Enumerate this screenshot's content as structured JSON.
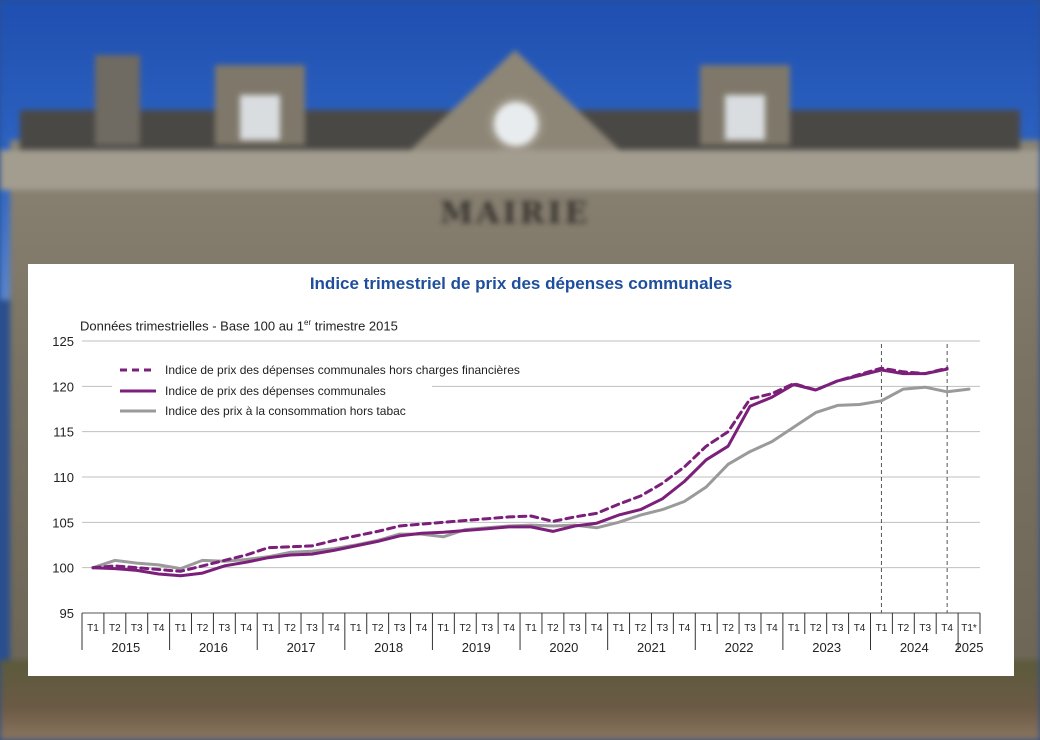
{
  "chart_data": {
    "type": "line",
    "title": "Indice trimestriel de prix des dépenses communales",
    "subtitle_prefix": "Données trimestrielles - Base 100 au 1",
    "subtitle_sup": "er",
    "subtitle_suffix": " trimestre 2015",
    "ylim": [
      95,
      125
    ],
    "yticks": [
      95,
      100,
      105,
      110,
      115,
      120,
      125
    ],
    "quarter_labels": [
      "T1",
      "T2",
      "T3",
      "T4",
      "T1",
      "T2",
      "T3",
      "T4",
      "T1",
      "T2",
      "T3",
      "T4",
      "T1",
      "T2",
      "T3",
      "T4",
      "T1",
      "T2",
      "T3",
      "T4",
      "T1",
      "T2",
      "T3",
      "T4",
      "T1",
      "T2",
      "T3",
      "T4",
      "T1",
      "T2",
      "T3",
      "T4",
      "T1",
      "T2",
      "T3",
      "T4",
      "T1",
      "T2",
      "T3",
      "T4",
      "T1*"
    ],
    "years": [
      "2015",
      "2016",
      "2017",
      "2018",
      "2019",
      "2020",
      "2021",
      "2022",
      "2023",
      "2024",
      "2025"
    ],
    "grid": true,
    "legend_position": "top-left",
    "series": [
      {
        "name": "Indice de prix des dépenses communales hors charges financières",
        "style": "dashed",
        "color": "#7b1f7a",
        "values": [
          100.0,
          100.2,
          100.0,
          99.8,
          99.6,
          100.2,
          100.8,
          101.4,
          102.2,
          102.3,
          102.4,
          103.0,
          103.5,
          104.0,
          104.6,
          104.8,
          105.0,
          105.2,
          105.4,
          105.6,
          105.7,
          105.1,
          105.6,
          106.0,
          107.0,
          107.9,
          109.3,
          111.1,
          113.4,
          115.0,
          118.6,
          119.2,
          120.3,
          119.6,
          120.6,
          121.3,
          122.0,
          121.6,
          121.4,
          122.0,
          null
        ]
      },
      {
        "name": "Indice de prix des dépenses communales",
        "style": "solid",
        "color": "#7b1f7a",
        "values": [
          100.0,
          99.9,
          99.7,
          99.3,
          99.1,
          99.4,
          100.2,
          100.6,
          101.1,
          101.4,
          101.5,
          101.9,
          102.4,
          102.9,
          103.5,
          103.8,
          103.9,
          104.1,
          104.3,
          104.5,
          104.5,
          104.0,
          104.6,
          104.9,
          105.8,
          106.4,
          107.6,
          109.5,
          111.9,
          113.4,
          117.8,
          118.8,
          120.2,
          119.6,
          120.6,
          121.2,
          121.8,
          121.4,
          121.4,
          121.9,
          null
        ]
      },
      {
        "name": "Indice des prix à la consommation hors tabac",
        "style": "solid",
        "color": "#9a9a9a",
        "values": [
          100.0,
          100.8,
          100.5,
          100.3,
          99.9,
          100.8,
          100.7,
          100.9,
          101.2,
          101.7,
          101.8,
          102.1,
          102.5,
          103.0,
          103.7,
          103.7,
          103.4,
          104.2,
          104.4,
          104.6,
          104.7,
          104.6,
          104.7,
          104.4,
          105.0,
          105.8,
          106.4,
          107.3,
          108.9,
          111.4,
          112.8,
          113.9,
          115.5,
          117.1,
          117.9,
          118.0,
          118.4,
          119.7,
          119.9,
          119.4,
          119.7
        ]
      }
    ],
    "annotations": [
      "vertical dashed line at 2024 T1",
      "vertical dashed line at 2024 T4"
    ]
  }
}
